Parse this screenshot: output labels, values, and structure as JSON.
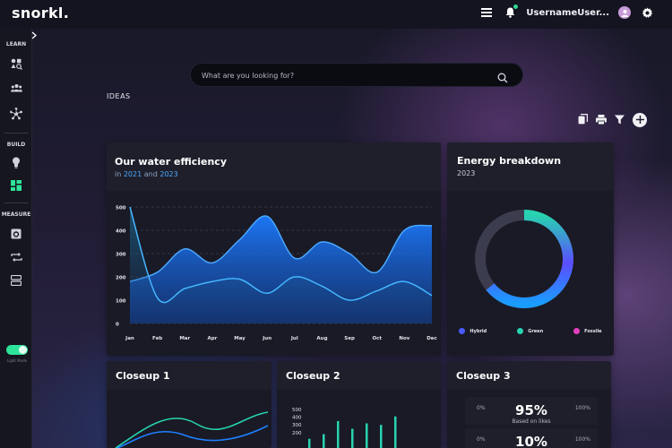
{
  "app": {
    "logo": "snorkl."
  },
  "header": {
    "username": "UsernameUser..."
  },
  "sidebar": {
    "sections": [
      "LEARN",
      "BUILD",
      "MEASURE"
    ],
    "toggle_label": "Light Mode"
  },
  "search": {
    "placeholder": "What are you looking for?"
  },
  "page": {
    "title": "IDEAS"
  },
  "colors": {
    "accent_blue": "#1c7bff",
    "hybrid": "#4a5cff",
    "green": "#27d3b0",
    "fossile": "#e23fbf",
    "toggle_green": "#2ee49a"
  },
  "water": {
    "title": "Our water efficiency",
    "sub_prefix": "in",
    "year1": "2021",
    "sub_and": "and",
    "year2": "2023"
  },
  "energy": {
    "title": "Energy breakdown",
    "year": "2023",
    "legend": [
      "Hybrid",
      "Green",
      "Fossile"
    ]
  },
  "closeup1": {
    "title": "Closeup 1"
  },
  "closeup2": {
    "title": "Closeup 2"
  },
  "closeup3": {
    "title": "Closeup 3",
    "row1": {
      "left": "0%",
      "big": "95%",
      "sub": "Based on likes",
      "right": "100%"
    },
    "row2": {
      "left": "0%",
      "big": "10%",
      "right": "100%"
    }
  },
  "chart_data": [
    {
      "type": "area",
      "title": "Our water efficiency",
      "categories": [
        "Jan",
        "Feb",
        "Mar",
        "Apr",
        "May",
        "Jun",
        "Jul",
        "Aug",
        "Sep",
        "Oct",
        "Nov",
        "Dec"
      ],
      "y_ticks": [
        0,
        100,
        200,
        300,
        400,
        500
      ],
      "ylim": [
        0,
        500
      ],
      "series": [
        {
          "values": [
            180,
            220,
            320,
            260,
            360,
            460,
            280,
            350,
            300,
            220,
            400,
            420
          ]
        },
        {
          "values": [
            500,
            110,
            150,
            180,
            190,
            130,
            200,
            160,
            100,
            140,
            180,
            120
          ]
        }
      ]
    },
    {
      "type": "pie",
      "title": "Energy breakdown",
      "categories": [
        "Hybrid",
        "Green",
        "Fossile"
      ],
      "values": [
        28,
        22,
        0
      ]
    },
    {
      "type": "bar",
      "title": "Closeup 2",
      "y_ticks": [
        500,
        400,
        300,
        200
      ],
      "values": [
        120,
        180,
        350,
        250,
        320,
        300,
        410
      ]
    }
  ]
}
